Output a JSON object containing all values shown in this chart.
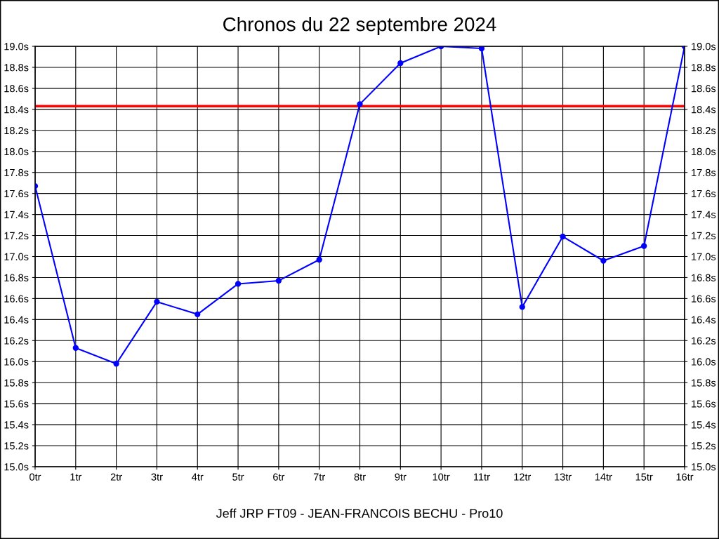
{
  "chart_data": {
    "type": "line",
    "title": "Chronos du 22 septembre 2024",
    "categories": [
      "0tr",
      "1tr",
      "2tr",
      "3tr",
      "4tr",
      "5tr",
      "6tr",
      "7tr",
      "8tr",
      "9tr",
      "10tr",
      "11tr",
      "12tr",
      "13tr",
      "14tr",
      "15tr",
      "16tr"
    ],
    "series": [
      {
        "color": "#0000ff",
        "values": [
          17.67,
          16.13,
          15.98,
          16.57,
          16.45,
          16.74,
          16.77,
          16.97,
          18.45,
          18.84,
          19.0,
          18.98,
          16.52,
          17.19,
          16.96,
          17.1,
          19.0
        ]
      }
    ],
    "ylim": [
      15.0,
      19.0
    ],
    "yticks": [
      {
        "value": 15.0,
        "label": "15.0s"
      },
      {
        "value": 15.2,
        "label": "15.2s"
      },
      {
        "value": 15.4,
        "label": "15.4s"
      },
      {
        "value": 15.6,
        "label": "15.6s"
      },
      {
        "value": 15.8,
        "label": "15.8s"
      },
      {
        "value": 16.0,
        "label": "16.0s"
      },
      {
        "value": 16.2,
        "label": "16.2s"
      },
      {
        "value": 16.4,
        "label": "16.4s"
      },
      {
        "value": 16.6,
        "label": "16.6s"
      },
      {
        "value": 16.8,
        "label": "16.8s"
      },
      {
        "value": 17.0,
        "label": "17.0s"
      },
      {
        "value": 17.2,
        "label": "17.2s"
      },
      {
        "value": 17.4,
        "label": "17.4s"
      },
      {
        "value": 17.6,
        "label": "17.6s"
      },
      {
        "value": 17.8,
        "label": "17.8s"
      },
      {
        "value": 18.0,
        "label": "18.0s"
      },
      {
        "value": 18.2,
        "label": "18.2s"
      },
      {
        "value": 18.4,
        "label": "18.4s"
      },
      {
        "value": 18.6,
        "label": "18.6s"
      },
      {
        "value": 18.8,
        "label": "18.8s"
      },
      {
        "value": 19.0,
        "label": "19.0s"
      }
    ],
    "y2lim": [
      15.0,
      19.0
    ],
    "y2ticks": [
      {
        "value": 15.0,
        "label": "15.0s"
      },
      {
        "value": 15.2,
        "label": "15.2s"
      },
      {
        "value": 15.4,
        "label": "15.4s"
      },
      {
        "value": 15.6,
        "label": "15.6s"
      },
      {
        "value": 15.8,
        "label": "15.8s"
      },
      {
        "value": 16.0,
        "label": "16.0s"
      },
      {
        "value": 16.2,
        "label": "16.2s"
      },
      {
        "value": 16.4,
        "label": "16.4s"
      },
      {
        "value": 16.6,
        "label": "16.6s"
      },
      {
        "value": 16.8,
        "label": "16.8s"
      },
      {
        "value": 17.0,
        "label": "17.0s"
      },
      {
        "value": 17.2,
        "label": "17.2s"
      },
      {
        "value": 17.4,
        "label": "17.4s"
      },
      {
        "value": 17.6,
        "label": "17.6s"
      },
      {
        "value": 17.8,
        "label": "17.8s"
      },
      {
        "value": 18.0,
        "label": "18.0s"
      },
      {
        "value": 18.2,
        "label": "18.2s"
      },
      {
        "value": 18.4,
        "label": "18.4s"
      },
      {
        "value": 18.6,
        "label": "18.6s"
      },
      {
        "value": 18.8,
        "label": "18.8s"
      },
      {
        "value": 19.0,
        "label": "19.0s"
      }
    ],
    "ref_lines": [
      {
        "axis": "y",
        "value": 18.43,
        "color": "#ff0000"
      }
    ],
    "annotations": [
      "Jeff JRP FT09 - JEAN-FRANCOIS BECHU - Pro10"
    ],
    "grid": true,
    "marker": "circle",
    "line_style": "solid"
  }
}
